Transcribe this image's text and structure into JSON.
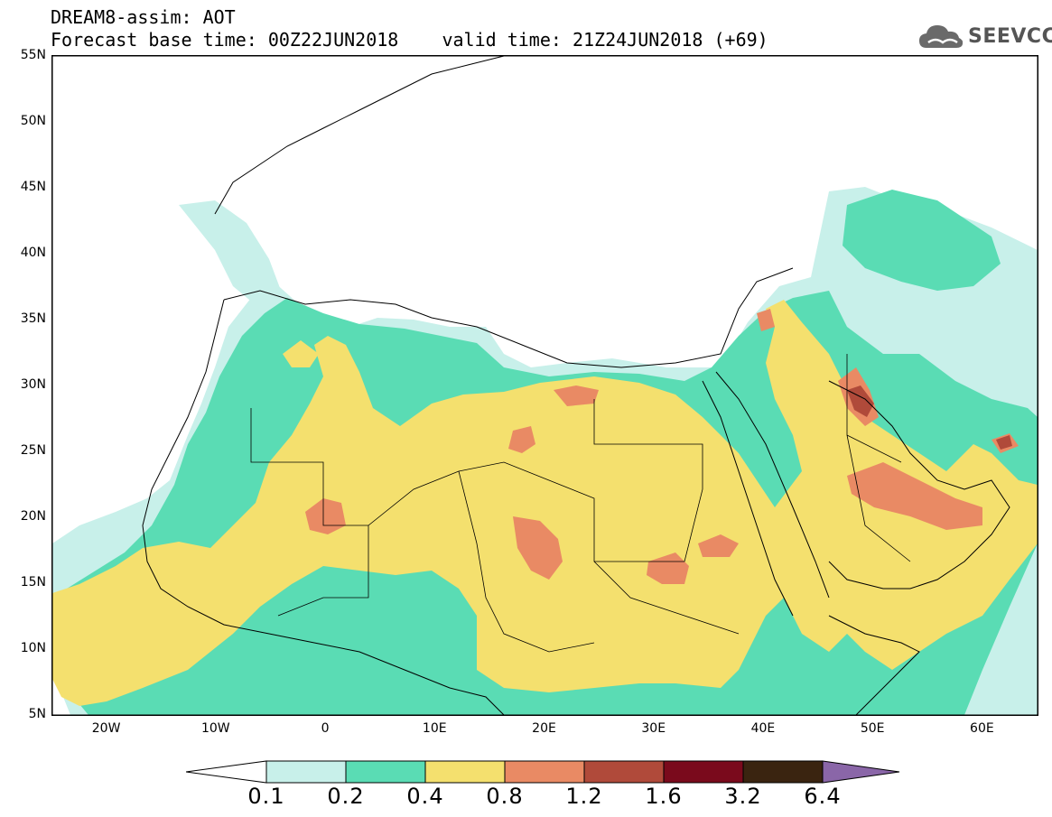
{
  "header": {
    "line1": "DREAM8-assim: AOT",
    "line2": "Forecast base time: 00Z22JUN2018    valid time: 21Z24JUN2018 (+69)",
    "logo_text": "SEEVCCC"
  },
  "axes": {
    "lat_labels": [
      "55N",
      "50N",
      "45N",
      "40N",
      "35N",
      "30N",
      "25N",
      "20N",
      "15N",
      "10N",
      "5N"
    ],
    "lon_labels": [
      "20W",
      "10W",
      "0",
      "10E",
      "20E",
      "30E",
      "40E",
      "50E",
      "60E"
    ],
    "lat_range": [
      5,
      55
    ],
    "lon_range": [
      -25,
      65
    ]
  },
  "legend": {
    "labels": [
      "0.1",
      "0.2",
      "0.4",
      "0.8",
      "1.2",
      "1.6",
      "3.2",
      "6.4"
    ],
    "colors": [
      "#ffffff",
      "#c8f0ea",
      "#5adcb4",
      "#f4e06e",
      "#e98a64",
      "#b04a3a",
      "#7a0a1c",
      "#3a2410",
      "#8a66a8"
    ]
  },
  "field_colors": {
    "c1": "#c8f0ea",
    "c2": "#5adcb4",
    "c3": "#f4e06e",
    "c4": "#e98a64",
    "c5": "#b04a3a"
  }
}
